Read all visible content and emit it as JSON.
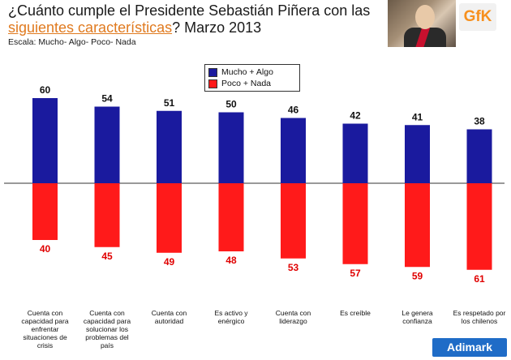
{
  "header": {
    "title_part1": "¿Cuánto cumple el Presidente Sebastián Piñera con las ",
    "title_highlight": "siguientes características",
    "title_part2": "? Marzo 2013",
    "scale": "Escala: Mucho- Algo- Poco- Nada"
  },
  "logo": {
    "text": "GfK",
    "color": "#f7901e"
  },
  "footer": {
    "brand": "Adimark",
    "color": "#1f6cc7"
  },
  "chart_data": {
    "type": "bar",
    "categories": [
      "Cuenta con capacidad para enfrentar situaciones de crisis",
      "Cuenta con capacidad para solucionar los problemas del país",
      "Cuenta con autoridad",
      "Es activo y enérgico",
      "Cuenta con liderazgo",
      "Es creíble",
      "Le genera confianza",
      "Es respetado por los chilenos"
    ],
    "category_lines": [
      [
        "Cuenta con",
        "capacidad para",
        "enfrentar",
        "situaciones de",
        "crisis"
      ],
      [
        "Cuenta con",
        "capacidad para",
        "solucionar los",
        "problemas del",
        "país"
      ],
      [
        "Cuenta con",
        "autoridad"
      ],
      [
        "Es activo y",
        "enérgico"
      ],
      [
        "Cuenta con",
        "liderazgo"
      ],
      [
        "Es creíble"
      ],
      [
        "Le genera",
        "confianza"
      ],
      [
        "Es respetado por",
        "los chilenos"
      ]
    ],
    "series": [
      {
        "name": "Mucho + Algo",
        "values": [
          60,
          54,
          51,
          50,
          46,
          42,
          41,
          38
        ],
        "color": "#1a1a9e",
        "label_color": "#111111"
      },
      {
        "name": "Poco + Nada",
        "values": [
          40,
          45,
          49,
          48,
          53,
          57,
          59,
          61
        ],
        "color": "#ff1a1a",
        "label_color": "#e00000"
      }
    ],
    "layout": "diverging",
    "legend_position": "top-center",
    "grid": false
  }
}
